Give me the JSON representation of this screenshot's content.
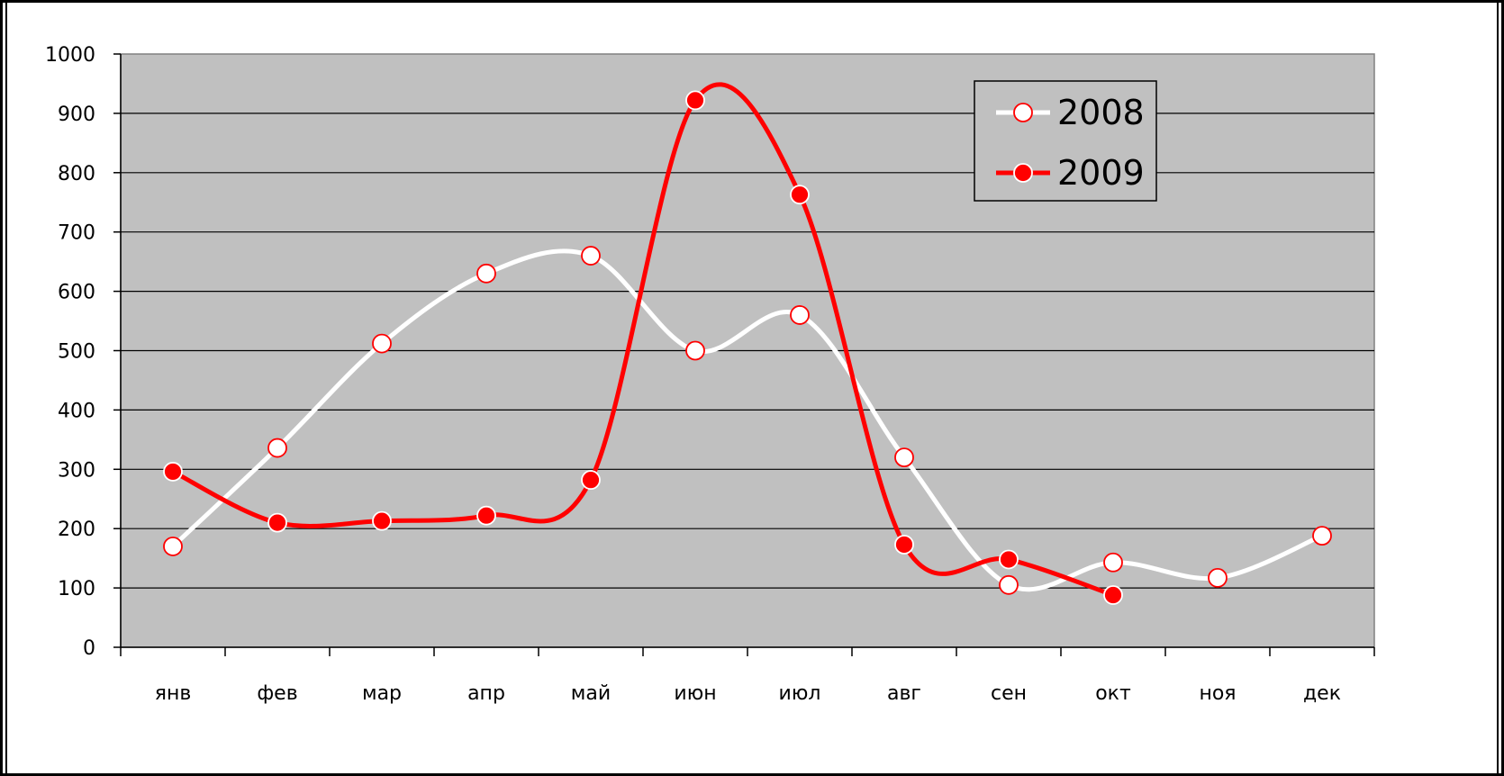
{
  "chart_data": {
    "type": "line",
    "title": "",
    "xlabel": "",
    "ylabel": "",
    "categories": [
      "янв",
      "фев",
      "мар",
      "апр",
      "май",
      "июн",
      "июл",
      "авг",
      "сен",
      "окт",
      "ноя",
      "дек"
    ],
    "ylim": [
      0,
      1000
    ],
    "yticks": [
      0,
      100,
      200,
      300,
      400,
      500,
      600,
      700,
      800,
      900,
      1000
    ],
    "grid": true,
    "smooth": true,
    "legend_position": "top-right",
    "plot_background": "#c0c0c0",
    "series": [
      {
        "name": "2008",
        "line_color": "#ffffff",
        "marker_fill": "#ffffff",
        "marker_stroke": "#ff0000",
        "values": [
          170,
          336,
          512,
          630,
          660,
          500,
          560,
          320,
          105,
          143,
          117,
          188
        ]
      },
      {
        "name": "2009",
        "line_color": "#ff0000",
        "marker_fill": "#ff0000",
        "marker_stroke": "#ffffff",
        "values": [
          296,
          210,
          213,
          222,
          282,
          922,
          763,
          173,
          148,
          88,
          null,
          null
        ]
      }
    ]
  }
}
